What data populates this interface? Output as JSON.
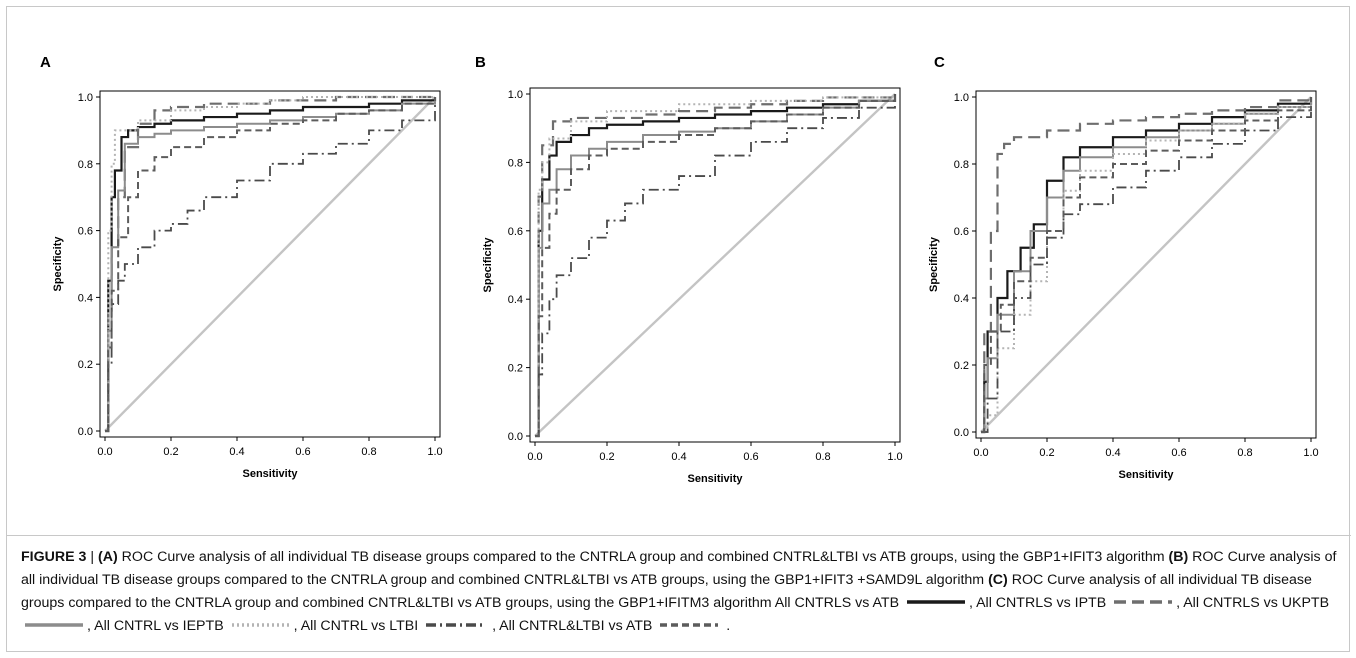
{
  "figure": {
    "caption_label": "FIGURE 3",
    "caption_separator": " | ",
    "caption_parts": [
      {
        "bold": "(A)",
        "text": " ROC Curve analysis of all individual TB disease groups compared to the CNTRLA group and combined CNTRL&LTBI vs ATB groups, using the GBP1+IFIT3 algorithm "
      },
      {
        "bold": "(B)",
        "text": " ROC Curve analysis of all individual TB disease groups compared to the CNTRLA group and combined CNTRL&LTBI vs ATB groups, using the GBP1+IFIT3 +SAMD9L algorithm "
      },
      {
        "bold": "(C)",
        "text": " ROC Curve analysis of all individual TB disease groups compared to the CNTRLA group and combined CNTRL&LTBI vs ATB groups, using the GBP1+IFITM3 algorithm "
      }
    ],
    "legend": [
      {
        "label": "All CNTRLS vs ATB",
        "style": "solid-black",
        "sep": ", "
      },
      {
        "label": "All CNTRLS vs IPTB",
        "style": "long-dash",
        "sep": ", "
      },
      {
        "label": "All CNTRLS vs UKPTB",
        "style": "solid-gray",
        "sep": ", "
      },
      {
        "label": "All CNTRL vs IEPTB",
        "style": "dotted",
        "sep": ", "
      },
      {
        "label": "All CNTRL vs LTBI",
        "style": "dash-dot",
        "sep": " , "
      },
      {
        "label": "All CNTRL&LTBI vs ATB",
        "style": "dash-gray",
        "sep": " ."
      }
    ],
    "colors": {
      "solid_black": "#1a1a1a",
      "long_dash": "#6e6e6e",
      "solid_gray": "#8c8c8c",
      "dotted": "#b4b4b4",
      "dash_dot": "#4a4a4a",
      "dash_gray": "#5c5c5c",
      "diagonal": "#c4c4c4"
    }
  },
  "chart_data": [
    {
      "panel": "A",
      "type": "line",
      "xlabel": "Sensitivity",
      "ylabel": "Specificity",
      "xlim": [
        0,
        1
      ],
      "ylim": [
        0,
        1
      ],
      "xticks": [
        "0.0",
        "0.2",
        "0.4",
        "0.6",
        "0.8",
        "1.0"
      ],
      "yticks": [
        "0.0",
        "0.2",
        "0.4",
        "0.6",
        "0.8",
        "1.0"
      ],
      "series": [
        {
          "name": "All CNTRLS vs ATB",
          "style": "solid-black",
          "x": [
            0,
            0.01,
            0.02,
            0.03,
            0.05,
            0.07,
            0.1,
            0.15,
            0.2,
            0.3,
            0.4,
            0.5,
            0.6,
            0.7,
            0.8,
            0.9,
            1.0
          ],
          "y": [
            0,
            0.45,
            0.7,
            0.78,
            0.88,
            0.9,
            0.91,
            0.92,
            0.93,
            0.94,
            0.95,
            0.96,
            0.97,
            0.97,
            0.98,
            0.99,
            1.0
          ]
        },
        {
          "name": "All CNTRLS vs IPTB",
          "style": "long-dash",
          "x": [
            0,
            0.01,
            0.02,
            0.04,
            0.06,
            0.1,
            0.15,
            0.2,
            0.3,
            0.4,
            0.5,
            0.6,
            0.7,
            0.8,
            0.9,
            1.0
          ],
          "y": [
            0,
            0.35,
            0.55,
            0.7,
            0.85,
            0.92,
            0.96,
            0.97,
            0.98,
            0.98,
            0.99,
            0.99,
            1.0,
            1.0,
            1.0,
            1.0
          ]
        },
        {
          "name": "All CNTRLS vs UKPTB",
          "style": "solid-gray",
          "x": [
            0,
            0.01,
            0.02,
            0.04,
            0.06,
            0.1,
            0.15,
            0.2,
            0.3,
            0.4,
            0.5,
            0.6,
            0.7,
            0.8,
            0.9,
            1.0
          ],
          "y": [
            0,
            0.3,
            0.55,
            0.72,
            0.86,
            0.88,
            0.89,
            0.9,
            0.91,
            0.92,
            0.93,
            0.94,
            0.95,
            0.96,
            0.98,
            1.0
          ]
        },
        {
          "name": "All CNTRL vs IEPTB",
          "style": "dotted",
          "x": [
            0,
            0.01,
            0.02,
            0.03,
            0.1,
            0.2,
            0.3,
            0.4,
            0.5,
            0.6,
            0.8,
            1.0
          ],
          "y": [
            0,
            0.6,
            0.8,
            0.9,
            0.93,
            0.96,
            0.97,
            0.98,
            0.99,
            1.0,
            1.0,
            1.0
          ]
        },
        {
          "name": "All CNTRL vs LTBI",
          "style": "dash-dot",
          "x": [
            0,
            0.01,
            0.02,
            0.04,
            0.06,
            0.1,
            0.15,
            0.2,
            0.25,
            0.3,
            0.4,
            0.5,
            0.6,
            0.7,
            0.8,
            0.9,
            1.0
          ],
          "y": [
            0,
            0.2,
            0.38,
            0.45,
            0.5,
            0.55,
            0.6,
            0.62,
            0.66,
            0.7,
            0.75,
            0.8,
            0.83,
            0.86,
            0.9,
            0.93,
            1.0
          ]
        },
        {
          "name": "All CNTRL&LTBI vs ATB",
          "style": "dash-gray",
          "x": [
            0,
            0.01,
            0.02,
            0.04,
            0.07,
            0.1,
            0.15,
            0.2,
            0.3,
            0.4,
            0.5,
            0.6,
            0.7,
            0.8,
            0.9,
            1.0
          ],
          "y": [
            0,
            0.25,
            0.42,
            0.58,
            0.7,
            0.78,
            0.82,
            0.85,
            0.88,
            0.9,
            0.92,
            0.93,
            0.95,
            0.96,
            0.98,
            1.0
          ]
        }
      ]
    },
    {
      "panel": "B",
      "type": "line",
      "xlabel": "Sensitivity",
      "ylabel": "Specificity",
      "xlim": [
        0,
        1
      ],
      "ylim": [
        0,
        1
      ],
      "xticks": [
        "0.0",
        "0.2",
        "0.4",
        "0.6",
        "0.8",
        "1.0"
      ],
      "yticks": [
        "0.0",
        "0.2",
        "0.4",
        "0.6",
        "0.8",
        "1.0"
      ],
      "series": [
        {
          "name": "All CNTRLS vs ATB",
          "style": "solid-black",
          "x": [
            0,
            0.01,
            0.02,
            0.04,
            0.06,
            0.1,
            0.15,
            0.2,
            0.3,
            0.4,
            0.5,
            0.6,
            0.7,
            0.8,
            0.9,
            1.0
          ],
          "y": [
            0,
            0.6,
            0.75,
            0.82,
            0.86,
            0.88,
            0.9,
            0.91,
            0.92,
            0.93,
            0.94,
            0.95,
            0.96,
            0.97,
            0.98,
            1.0
          ]
        },
        {
          "name": "All CNTRLS vs IPTB",
          "style": "long-dash",
          "x": [
            0,
            0.01,
            0.02,
            0.05,
            0.1,
            0.2,
            0.3,
            0.4,
            0.5,
            0.6,
            0.7,
            0.8,
            0.9,
            1.0
          ],
          "y": [
            0,
            0.7,
            0.85,
            0.92,
            0.93,
            0.93,
            0.94,
            0.95,
            0.96,
            0.97,
            0.98,
            0.99,
            0.99,
            1.0
          ]
        },
        {
          "name": "All CNTRLS vs UKPTB",
          "style": "solid-gray",
          "x": [
            0,
            0.01,
            0.02,
            0.04,
            0.06,
            0.1,
            0.15,
            0.2,
            0.3,
            0.4,
            0.5,
            0.6,
            0.7,
            0.8,
            0.9,
            1.0
          ],
          "y": [
            0,
            0.55,
            0.68,
            0.72,
            0.78,
            0.82,
            0.84,
            0.86,
            0.88,
            0.89,
            0.9,
            0.92,
            0.94,
            0.96,
            0.98,
            1.0
          ]
        },
        {
          "name": "All CNTRL vs IEPTB",
          "style": "dotted",
          "x": [
            0,
            0.01,
            0.02,
            0.04,
            0.1,
            0.2,
            0.4,
            0.6,
            0.8,
            1.0
          ],
          "y": [
            0,
            0.72,
            0.8,
            0.87,
            0.92,
            0.95,
            0.97,
            0.98,
            0.99,
            1.0
          ]
        },
        {
          "name": "All CNTRL vs LTBI",
          "style": "dash-dot",
          "x": [
            0,
            0.01,
            0.02,
            0.04,
            0.06,
            0.1,
            0.15,
            0.2,
            0.25,
            0.3,
            0.4,
            0.5,
            0.6,
            0.7,
            0.8,
            0.9,
            1.0
          ],
          "y": [
            0,
            0.18,
            0.3,
            0.4,
            0.47,
            0.52,
            0.58,
            0.63,
            0.68,
            0.72,
            0.76,
            0.82,
            0.86,
            0.9,
            0.93,
            0.96,
            1.0
          ]
        },
        {
          "name": "All CNTRL&LTBI vs ATB",
          "style": "dash-gray",
          "x": [
            0,
            0.01,
            0.02,
            0.04,
            0.06,
            0.1,
            0.15,
            0.2,
            0.3,
            0.4,
            0.5,
            0.6,
            0.7,
            0.8,
            0.9,
            1.0
          ],
          "y": [
            0,
            0.35,
            0.55,
            0.65,
            0.72,
            0.78,
            0.82,
            0.84,
            0.86,
            0.88,
            0.9,
            0.92,
            0.94,
            0.96,
            0.98,
            1.0
          ]
        }
      ]
    },
    {
      "panel": "C",
      "type": "line",
      "xlabel": "Sensitivity",
      "ylabel": "Specificity",
      "xlim": [
        0,
        1
      ],
      "ylim": [
        0,
        1
      ],
      "xticks": [
        "0.0",
        "0.2",
        "0.4",
        "0.6",
        "0.8",
        "1.0"
      ],
      "yticks": [
        "0.0",
        "0.2",
        "0.4",
        "0.6",
        "0.8",
        "1.0"
      ],
      "series": [
        {
          "name": "All CNTRLS vs ATB",
          "style": "solid-black",
          "x": [
            0,
            0.01,
            0.02,
            0.05,
            0.08,
            0.12,
            0.16,
            0.2,
            0.25,
            0.3,
            0.4,
            0.5,
            0.6,
            0.7,
            0.8,
            0.9,
            1.0
          ],
          "y": [
            0,
            0.15,
            0.3,
            0.4,
            0.48,
            0.55,
            0.62,
            0.75,
            0.82,
            0.85,
            0.88,
            0.9,
            0.92,
            0.94,
            0.96,
            0.98,
            1.0
          ]
        },
        {
          "name": "All CNTRLS vs IPTB",
          "style": "long-dash",
          "x": [
            0,
            0.01,
            0.03,
            0.05,
            0.07,
            0.1,
            0.2,
            0.3,
            0.4,
            0.5,
            0.6,
            0.7,
            0.8,
            0.9,
            1.0
          ],
          "y": [
            0,
            0.3,
            0.6,
            0.83,
            0.86,
            0.88,
            0.9,
            0.92,
            0.93,
            0.94,
            0.95,
            0.96,
            0.97,
            0.99,
            1.0
          ]
        },
        {
          "name": "All CNTRLS vs UKPTB",
          "style": "solid-gray",
          "x": [
            0,
            0.01,
            0.02,
            0.05,
            0.1,
            0.15,
            0.2,
            0.25,
            0.3,
            0.4,
            0.5,
            0.6,
            0.7,
            0.8,
            0.9,
            1.0
          ],
          "y": [
            0,
            0.1,
            0.22,
            0.35,
            0.48,
            0.6,
            0.7,
            0.78,
            0.82,
            0.85,
            0.88,
            0.9,
            0.92,
            0.95,
            0.97,
            1.0
          ]
        },
        {
          "name": "All CNTRL vs IEPTB",
          "style": "dotted",
          "x": [
            0,
            0.02,
            0.05,
            0.1,
            0.15,
            0.2,
            0.25,
            0.3,
            0.4,
            0.5,
            0.6,
            0.7,
            0.8,
            0.9,
            1.0
          ],
          "y": [
            0,
            0.05,
            0.25,
            0.35,
            0.45,
            0.6,
            0.72,
            0.78,
            0.83,
            0.87,
            0.9,
            0.92,
            0.95,
            0.97,
            1.0
          ]
        },
        {
          "name": "All CNTRL vs LTBI",
          "style": "dash-dot",
          "x": [
            0,
            0.02,
            0.05,
            0.1,
            0.15,
            0.2,
            0.25,
            0.3,
            0.4,
            0.5,
            0.6,
            0.7,
            0.8,
            0.9,
            1.0
          ],
          "y": [
            0,
            0.1,
            0.3,
            0.4,
            0.5,
            0.58,
            0.65,
            0.68,
            0.73,
            0.78,
            0.82,
            0.86,
            0.9,
            0.94,
            1.0
          ]
        },
        {
          "name": "All CNTRL&LTBI vs ATB",
          "style": "dash-gray",
          "x": [
            0,
            0.01,
            0.03,
            0.06,
            0.1,
            0.15,
            0.2,
            0.25,
            0.3,
            0.4,
            0.5,
            0.6,
            0.7,
            0.8,
            0.9,
            1.0
          ],
          "y": [
            0,
            0.2,
            0.3,
            0.38,
            0.45,
            0.52,
            0.6,
            0.7,
            0.76,
            0.8,
            0.84,
            0.87,
            0.9,
            0.93,
            0.96,
            1.0
          ]
        }
      ]
    }
  ]
}
